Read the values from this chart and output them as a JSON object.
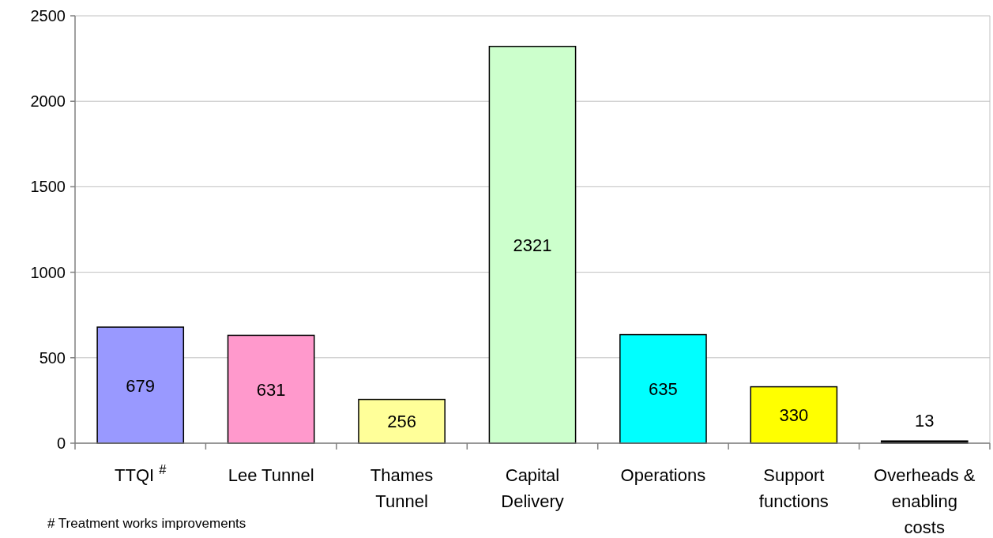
{
  "chart_data": {
    "type": "bar",
    "categories": [
      "TTQI $^{#}$",
      "Lee Tunnel",
      "Thames Tunnel",
      "Capital Delivery",
      "Operations",
      "Support functions",
      "Overheads & enabling costs"
    ],
    "values": [
      679,
      631,
      256,
      2321,
      635,
      330,
      13
    ],
    "colors": [
      "#9999ff",
      "#ff99cc",
      "#ffff99",
      "#ccffcc",
      "#00ffff",
      "#ffff00",
      "#000000"
    ],
    "ylim": [
      0,
      2500
    ],
    "yticks": [
      0,
      500,
      1000,
      1500,
      2000,
      2500
    ],
    "grid": "y",
    "data_labels": true,
    "annotations": [
      "# Treatment works improvements"
    ]
  }
}
